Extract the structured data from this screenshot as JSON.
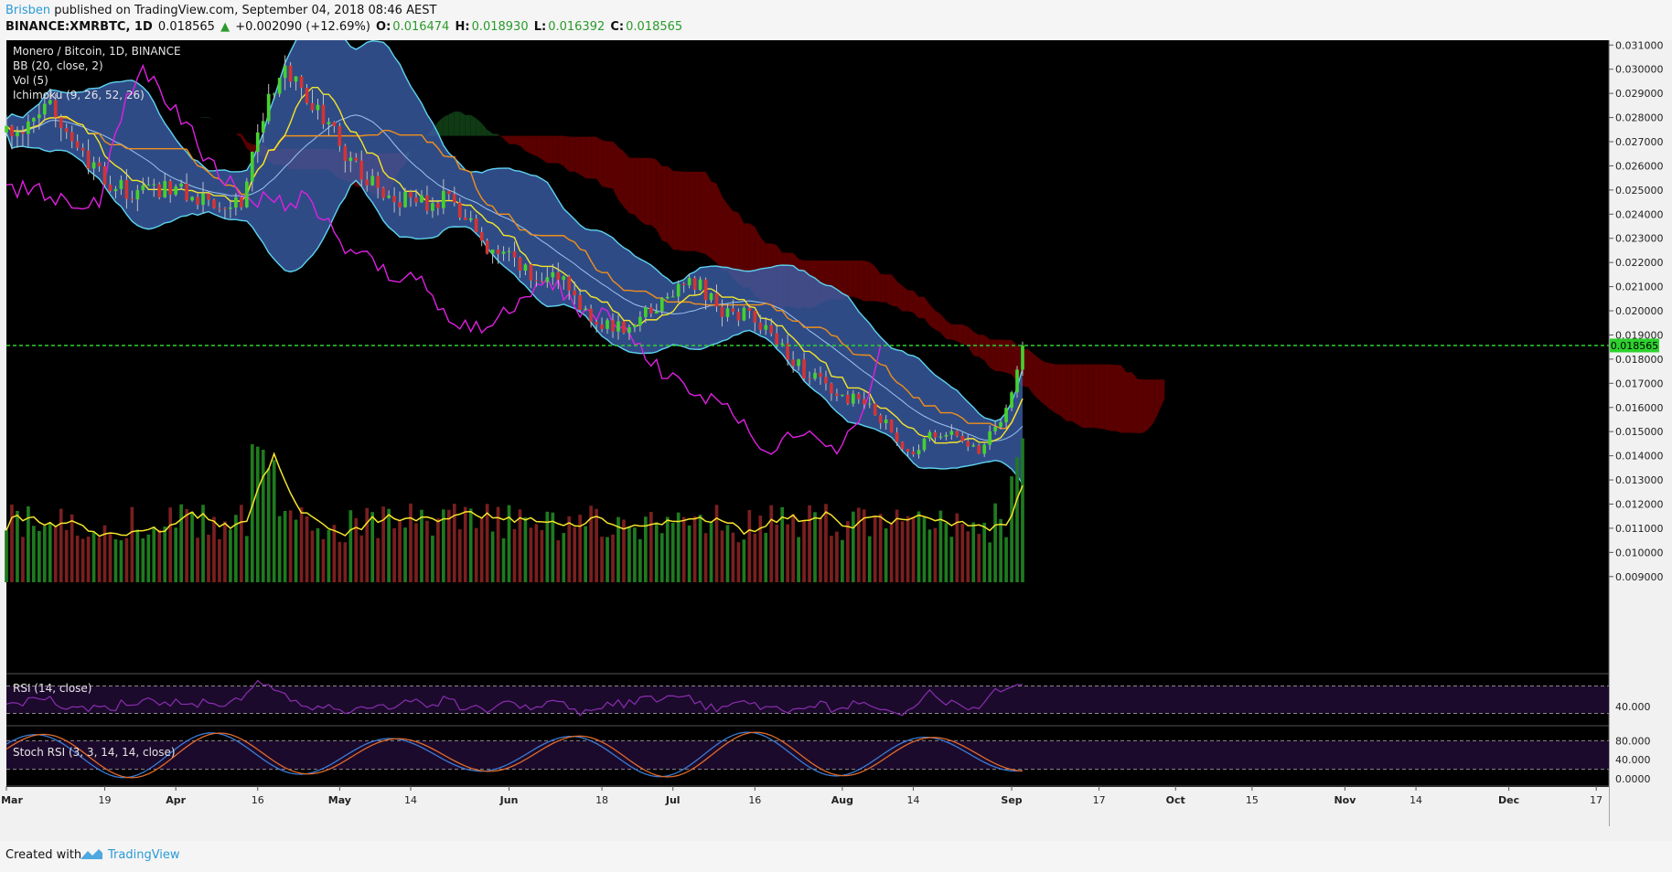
{
  "header": {
    "author": "Brisben",
    "published_text": "published on TradingView.com, September 04, 2018 08:46 AEST",
    "symbol": "BINANCE:XMRBTC, 1D",
    "last": "0.018565",
    "change_arrow": "▲",
    "change": "+0.002090 (+12.69%)",
    "o_label": "O:",
    "o_value": "0.016474",
    "h_label": "H:",
    "h_value": "0.018930",
    "l_label": "L:",
    "l_value": "0.016392",
    "c_label": "C:",
    "c_value": "0.018565"
  },
  "legend": {
    "title": "Monero / Bitcoin, 1D, BINANCE",
    "bb": "BB (20, close, 2)",
    "vol": "Vol (5)",
    "ichimoku": "Ichimoku (9, 26, 52, 26)",
    "rsi": "RSI (14, close)",
    "stoch": "Stoch RSI (3, 3, 14, 14, close)"
  },
  "footer": {
    "created_with": "Created with",
    "brand": "TradingView"
  },
  "colors": {
    "background": "#000000",
    "candle_up": "#46d030",
    "candle_down": "#d23434",
    "bb_fill": "#3b5ea8",
    "bb_band": "#5ed3f0",
    "cloud_bear": "#5a0000",
    "cloud_bull": "#0f3a14",
    "conversion": "#f5e52a",
    "base": "#f08f1a",
    "lagging": "#e020e0",
    "volume_ma": "#f5e52a",
    "vol_up": "#1f7a1f",
    "vol_down": "#7a1f1f",
    "rsi_line": "#8a2fb0",
    "stoch_k": "#3a7bd5",
    "stoch_d": "#e06a2a",
    "last_price_line": "#2ed12e",
    "panel_bg": "#1c0a2c"
  },
  "chart_data": {
    "type": "candlestick",
    "symbol": "BINANCE:XMRBTC",
    "interval": "1D",
    "y_range": [
      0.0085,
      0.0312
    ],
    "last_price": 0.018565,
    "last_price_label": "0.018565",
    "price_ticks": [
      "0.031000",
      "0.030000",
      "0.029000",
      "0.028000",
      "0.027000",
      "0.026000",
      "0.025000",
      "0.024000",
      "0.023000",
      "0.022000",
      "0.021000",
      "0.020000",
      "0.019000",
      "0.018000",
      "0.017000",
      "0.016000",
      "0.015000",
      "0.014000",
      "0.013000",
      "0.012000",
      "0.011000",
      "0.010000",
      "0.009000"
    ],
    "x_ticks": [
      "Mar",
      "19",
      "Apr",
      "16",
      "May",
      "14",
      "Jun",
      "18",
      "Jul",
      "16",
      "Aug",
      "14",
      "Sep",
      "17",
      "Oct",
      "15",
      "Nov",
      "14",
      "Dec",
      "17"
    ],
    "candle_anchors": [
      [
        "2018-03-05",
        0.0275
      ],
      [
        "2018-03-10",
        0.0285
      ],
      [
        "2018-03-15",
        0.0262
      ],
      [
        "2018-03-20",
        0.0252
      ],
      [
        "2018-03-25",
        0.0248
      ],
      [
        "2018-03-31",
        0.0252
      ],
      [
        "2018-04-05",
        0.0247
      ],
      [
        "2018-04-10",
        0.0246
      ],
      [
        "2018-04-13",
        0.0245
      ],
      [
        "2018-04-16",
        0.0275
      ],
      [
        "2018-04-20",
        0.03
      ],
      [
        "2018-04-25",
        0.0288
      ],
      [
        "2018-05-01",
        0.027
      ],
      [
        "2018-05-05",
        0.0256
      ],
      [
        "2018-05-10",
        0.0248
      ],
      [
        "2018-05-15",
        0.0245
      ],
      [
        "2018-05-20",
        0.0246
      ],
      [
        "2018-05-25",
        0.0238
      ],
      [
        "2018-05-28",
        0.0222
      ],
      [
        "2018-06-01",
        0.0222
      ],
      [
        "2018-06-05",
        0.0214
      ],
      [
        "2018-06-10",
        0.0214
      ],
      [
        "2018-06-15",
        0.02
      ],
      [
        "2018-06-20",
        0.0192
      ],
      [
        "2018-06-25",
        0.0196
      ],
      [
        "2018-07-01",
        0.0208
      ],
      [
        "2018-07-05",
        0.0212
      ],
      [
        "2018-07-10",
        0.02
      ],
      [
        "2018-07-15",
        0.0198
      ],
      [
        "2018-07-20",
        0.0188
      ],
      [
        "2018-07-25",
        0.0175
      ],
      [
        "2018-07-31",
        0.0165
      ],
      [
        "2018-08-05",
        0.0162
      ],
      [
        "2018-08-10",
        0.015
      ],
      [
        "2018-08-14",
        0.014
      ],
      [
        "2018-08-18",
        0.015
      ],
      [
        "2018-08-22",
        0.0147
      ],
      [
        "2018-08-26",
        0.0143
      ],
      [
        "2018-08-29",
        0.015
      ],
      [
        "2018-09-01",
        0.0165
      ],
      [
        "2018-09-03",
        0.018565
      ]
    ],
    "volume_y_range": [
      0,
      1
    ],
    "rsi": {
      "ticks": [
        "40.000"
      ],
      "bands": [
        30,
        70
      ],
      "last": 72
    },
    "stoch_rsi": {
      "ticks": [
        "80.000",
        "40.000",
        "0.0000"
      ],
      "bands": [
        20,
        80
      ]
    }
  }
}
